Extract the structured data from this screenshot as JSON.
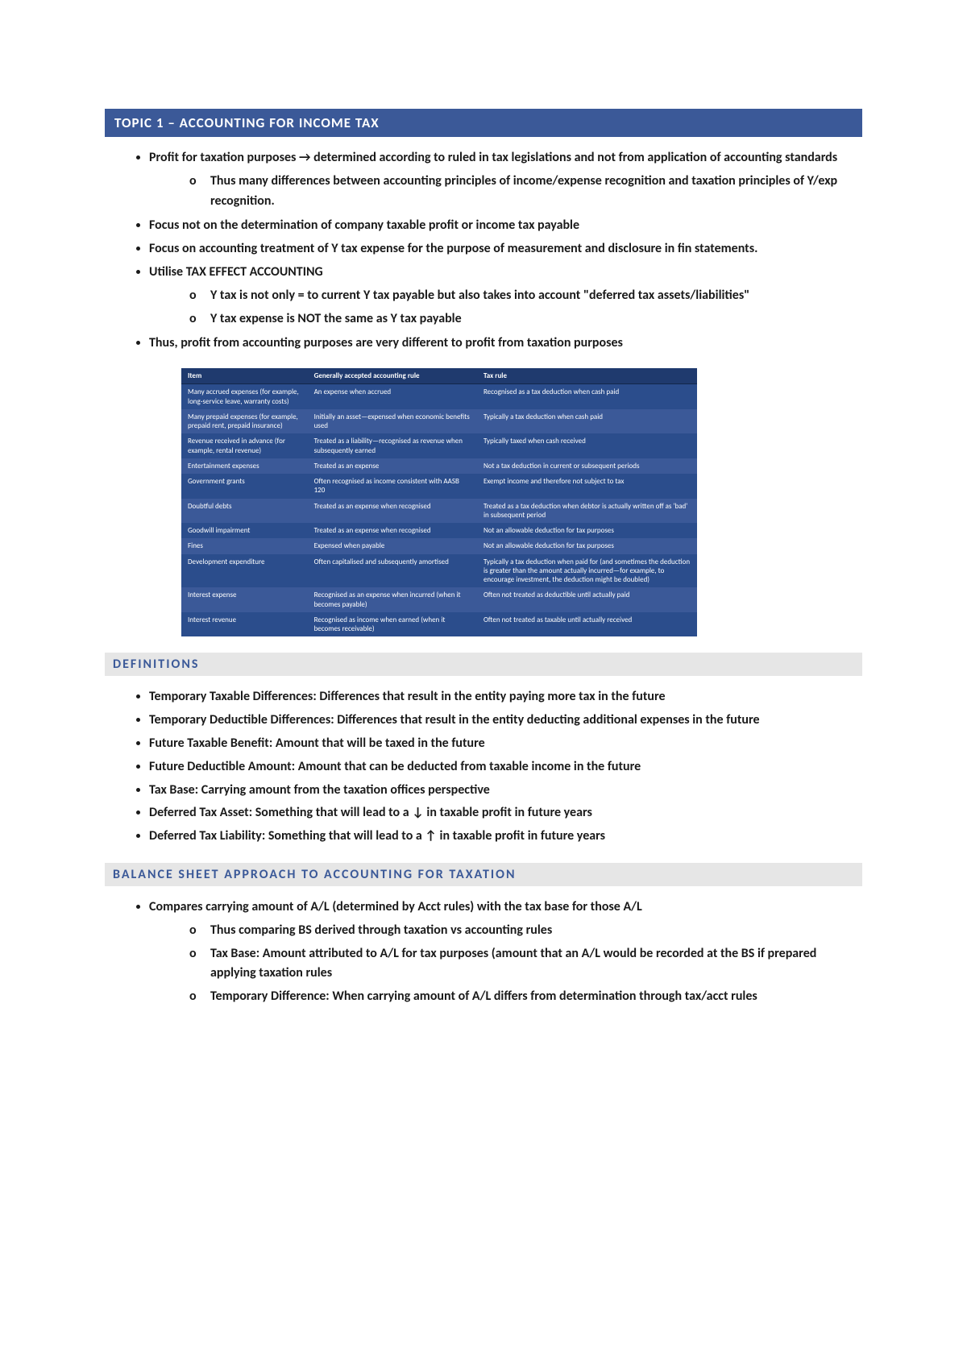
{
  "colors": {
    "topic_bg": "#3b5998",
    "section_bg": "#e6e6e6",
    "section_fg": "#3b5998",
    "table_header_bg": "#1f3a6e",
    "table_row_even": "#2b4d8c",
    "table_row_odd": "#3b5998",
    "text": "#1a1a1a",
    "page_bg": "#ffffff"
  },
  "typography": {
    "body_family": "Calibri",
    "base_size_pt": 12,
    "header_size_pt": 13,
    "table_size_pt": 7
  },
  "topic_header": "TOPIC 1 – ACCOUNTING FOR INCOME TAX",
  "bullets": [
    {
      "text": "Profit for taxation purposes → determined according to ruled in tax legislations and not from application of accounting standards",
      "sub": [
        "Thus many differences between accounting principles of income/expense recognition and taxation principles of Y/exp recognition."
      ]
    },
    {
      "text": "Focus not on the determination of company taxable profit or income tax payable"
    },
    {
      "text": "Focus on accounting treatment of Y tax expense for the purpose of measurement and disclosure in fin statements."
    },
    {
      "text": "Utilise TAX EFFECT ACCOUNTING",
      "sub": [
        "Y tax is not only = to current Y tax payable but also takes into account \"deferred tax assets/liabilities\"",
        "Y tax expense is NOT the same as Y tax payable"
      ]
    },
    {
      "text": "Thus, profit from accounting purposes are very different to profit from taxation purposes"
    }
  ],
  "tax_table": {
    "headers": [
      "Item",
      "Generally accepted accounting rule",
      "Tax rule"
    ],
    "rows": [
      [
        "Many accrued expenses (for example, long-service leave, warranty costs)",
        "An expense when accrued",
        "Recognised as a tax deduction when cash paid"
      ],
      [
        "Many prepaid expenses (for example, prepaid rent, prepaid insurance)",
        "Initially an asset—expensed when economic benefits used",
        "Typically a tax deduction when cash paid"
      ],
      [
        "Revenue received in advance (for example, rental revenue)",
        "Treated as a liability—recognised as revenue when subsequently earned",
        "Typically taxed when cash received"
      ],
      [
        "Entertainment expenses",
        "Treated as an expense",
        "Not a tax deduction in current or subsequent periods"
      ],
      [
        "Government grants",
        "Often recognised as income consistent with AASB 120",
        "Exempt income and therefore not subject to tax"
      ],
      [
        "Doubtful debts",
        "Treated as an expense when recognised",
        "Treated as a tax deduction when debtor is actually written off as 'bad' in subsequent period"
      ],
      [
        "Goodwill impairment",
        "Treated as an expense when recognised",
        "Not an allowable deduction for tax purposes"
      ],
      [
        "Fines",
        "Expensed when payable",
        "Not an allowable deduction for tax purposes"
      ],
      [
        "Development expenditure",
        "Often capitalised and subsequently amortised",
        "Typically a tax deduction when paid for (and sometimes the deduction is greater than the amount actually incurred—for example, to encourage investment, the deduction might be doubled)"
      ],
      [
        "Interest expense",
        "Recognised as an expense when incurred (when it becomes payable)",
        "Often not treated as deductible until actually paid"
      ],
      [
        "Interest revenue",
        "Recognised as income when earned (when it becomes receivable)",
        "Often not treated as taxable until actually received"
      ]
    ]
  },
  "definitions_header": "DEFINITIONS",
  "definitions": [
    "Temporary Taxable Differences: Differences that result in the entity paying more tax in the future",
    "Temporary Deductible Differences: Differences that result in the entity deducting additional expenses in the future",
    "Future Taxable Benefit: Amount that will be taxed in the future",
    "Future Deductible Amount: Amount that can be deducted from taxable income in the future",
    "Tax Base: Carrying amount from the taxation offices perspective",
    "Deferred Tax Asset: Something that will lead to a ↓ in taxable profit in future years",
    "Deferred Tax Liability: Something that will lead to a ↑ in taxable profit in future years"
  ],
  "balance_header": "BALANCE SHEET APPROACH TO ACCOUNTING FOR TAXATION",
  "balance_bullets": [
    {
      "text": "Compares carrying amount of A/L (determined by Acct rules) with the tax base for those A/L",
      "sub": [
        "Thus comparing BS derived through taxation vs accounting rules",
        "Tax Base: Amount attributed to A/L for tax purposes (amount that an A/L would be recorded at the BS if prepared applying taxation rules",
        "Temporary Difference: When carrying amount of A/L differs from determination through tax/acct rules"
      ]
    }
  ]
}
